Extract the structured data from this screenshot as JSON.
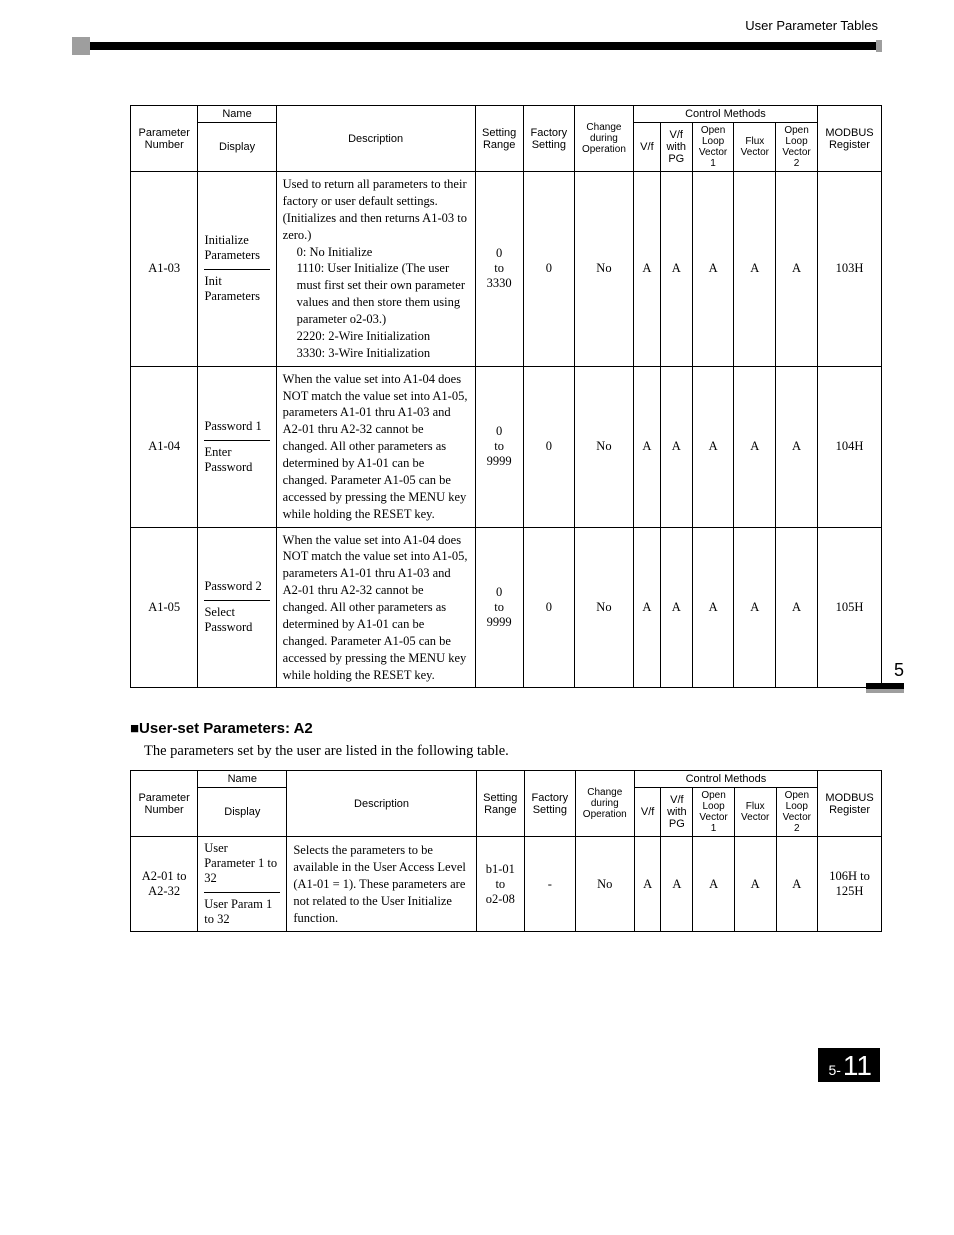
{
  "header": {
    "title": "User Parameter Tables"
  },
  "side": {
    "chapter": "5"
  },
  "footer": {
    "prefix": "5-",
    "page": "11"
  },
  "tableHeaders": {
    "param": "Parameter Number",
    "name": "Name",
    "display": "Display",
    "description": "Description",
    "range": "Setting Range",
    "factory": "Factory Setting",
    "change": "Change during Operation",
    "methods": "Control Methods",
    "vf": "V/f",
    "vfpg": "V/f with PG",
    "olv1": "Open Loop Vector 1",
    "flux": "Flux Vector",
    "olv2": "Open Loop Vector 2",
    "modbus": "MODBUS Register"
  },
  "table1": {
    "rows": [
      {
        "param": "A1-03",
        "name": "Initialize Parameters",
        "display": "Init Parameters",
        "description": "Used to return all parameters to their factory or user default settings. (Initializes and then returns A1-03 to zero.)\n0: No Initialize\n1110: User Initialize (The user must first set their own parameter values and then store them using parameter o2-03.)\n2220: 2-Wire Initialization\n3330: 3-Wire Initialization",
        "range": "0\nto\n3330",
        "factory": "0",
        "change": "No",
        "vf": "A",
        "vfpg": "A",
        "olv1": "A",
        "flux": "A",
        "olv2": "A",
        "modbus": "103H"
      },
      {
        "param": "A1-04",
        "name": "Password 1",
        "display": "Enter Password",
        "description": "When the value set into A1-04 does NOT match the value set into A1-05, parameters A1-01 thru A1-03 and A2-01 thru A2-32 cannot be changed. All other parameters as determined by A1-01 can be changed. Parameter A1-05 can be accessed by pressing the MENU key while holding the RESET key.",
        "range": "0\nto\n9999",
        "factory": "0",
        "change": "No",
        "vf": "A",
        "vfpg": "A",
        "olv1": "A",
        "flux": "A",
        "olv2": "A",
        "modbus": "104H"
      },
      {
        "param": "A1-05",
        "name": "Password 2",
        "display": "Select Password",
        "description": "When the value set into A1-04 does NOT match the value set into A1-05, parameters A1-01 thru A1-03 and A2-01 thru A2-32 cannot be changed. All other parameters as determined by A1-01 can be changed. Parameter A1-05 can be accessed by pressing the MENU key while holding the RESET key.",
        "range": "0\nto\n9999",
        "factory": "0",
        "change": "No",
        "vf": "A",
        "vfpg": "A",
        "olv1": "A",
        "flux": "A",
        "olv2": "A",
        "modbus": "105H"
      }
    ]
  },
  "section2": {
    "heading": "■User-set Parameters: A2",
    "sub": "The parameters set by the user are listed in the following table."
  },
  "table2": {
    "rows": [
      {
        "param": "A2-01 to A2-32",
        "name": "User Parameter 1 to 32",
        "display": "User Param 1 to 32",
        "description": "Selects the parameters to be available in the User Access Level (A1-01 = 1). These parameters are not related to the User Initialize function.",
        "range": "b1-01\nto\no2-08",
        "factory": "-",
        "change": "No",
        "vf": "A",
        "vfpg": "A",
        "olv1": "A",
        "flux": "A",
        "olv2": "A",
        "modbus": "106H to 125H"
      }
    ]
  }
}
